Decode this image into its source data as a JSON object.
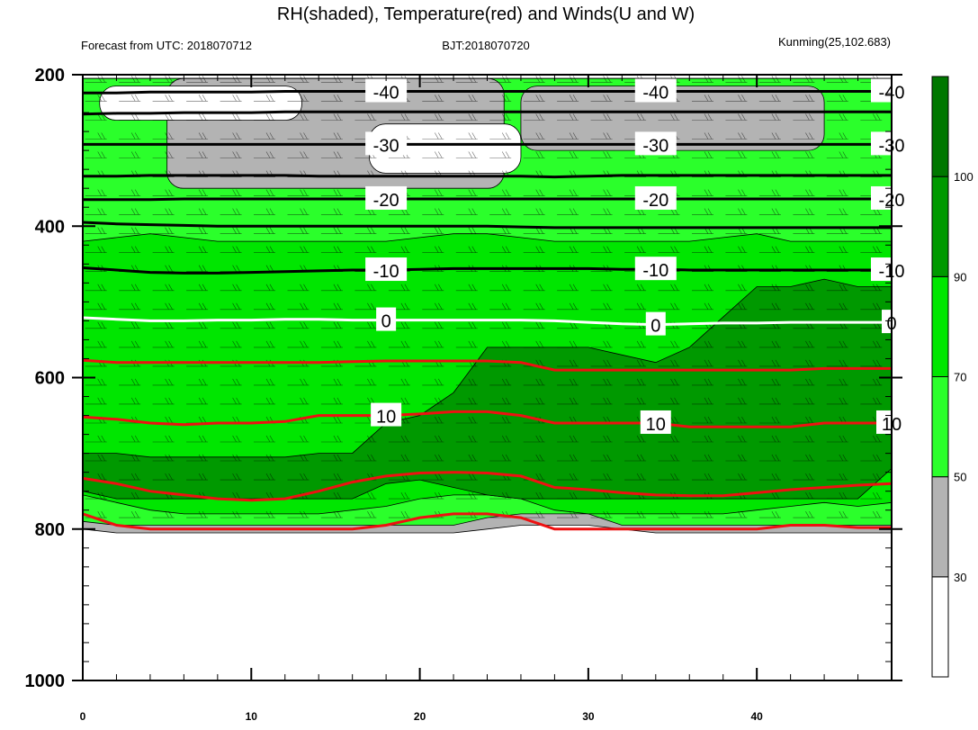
{
  "title": "RH(shaded), Temperature(red) and Winds(U and W)",
  "left_info": "Forecast from UTC: 2018070712",
  "center_info": "BJT:2018070720",
  "right_info": "Kunming(25,102.683)",
  "colors": {
    "rh_lt30": "#ffffff",
    "rh_30_50": "#b3b3b3",
    "rh_50_70": "#2bff2b",
    "rh_70_90": "#00e600",
    "rh_90_100": "#009900",
    "rh_gt100": "#007700",
    "temp_positive": "#ee1111",
    "temp_zero": "#ffffff",
    "temp_negative": "#000000"
  },
  "chart_data": {
    "type": "heatmap",
    "xlim": [
      0,
      48
    ],
    "ylim": [
      1000,
      200
    ],
    "x_ticks": [
      "0",
      "10",
      "20",
      "30",
      "40"
    ],
    "x_tick_values": [
      0,
      10,
      20,
      30,
      40
    ],
    "y_ticks": [
      "200",
      "400",
      "600",
      "800",
      "1000"
    ],
    "y_tick_values": [
      200,
      400,
      600,
      800,
      1000
    ],
    "colorbar": {
      "levels": [
        "30",
        "50",
        "70",
        "90",
        "100"
      ],
      "bounds": [
        0,
        30,
        50,
        70,
        90,
        100,
        110
      ]
    },
    "rh_bands": [
      {
        "lo": 30,
        "hi": 50,
        "top": [
          205,
          205,
          205,
          205,
          205,
          205,
          205,
          205,
          205,
          205,
          205,
          205,
          205,
          205,
          205,
          205,
          205,
          205,
          205,
          205,
          205,
          205,
          205,
          205,
          205
        ],
        "bottom": [
          800,
          805,
          805,
          805,
          805,
          805,
          805,
          805,
          805,
          805,
          805,
          805,
          800,
          795,
          795,
          795,
          800,
          805,
          805,
          805,
          805,
          805,
          805,
          805,
          805
        ]
      },
      {
        "lo": 50,
        "hi": 70,
        "top": [
          205,
          205,
          205,
          205,
          205,
          205,
          205,
          205,
          205,
          205,
          205,
          205,
          205,
          205,
          205,
          205,
          205,
          205,
          205,
          205,
          205,
          205,
          205,
          205,
          205
        ],
        "bottom": [
          790,
          795,
          795,
          795,
          795,
          795,
          795,
          795,
          795,
          795,
          795,
          795,
          785,
          780,
          780,
          780,
          795,
          795,
          795,
          795,
          795,
          795,
          795,
          795,
          795
        ]
      },
      {
        "lo": 70,
        "hi": 90,
        "top": [
          420,
          415,
          410,
          415,
          420,
          420,
          420,
          420,
          420,
          420,
          415,
          410,
          410,
          415,
          420,
          420,
          420,
          420,
          420,
          415,
          410,
          420,
          420,
          420,
          420
        ],
        "bottom": [
          755,
          765,
          775,
          780,
          780,
          780,
          780,
          780,
          775,
          770,
          760,
          755,
          755,
          760,
          775,
          780,
          780,
          780,
          780,
          780,
          775,
          770,
          765,
          770,
          765
        ]
      },
      {
        "lo": 90,
        "hi": 100,
        "top": [
          700,
          700,
          705,
          705,
          705,
          705,
          705,
          700,
          700,
          660,
          650,
          620,
          560,
          560,
          560,
          560,
          570,
          580,
          560,
          520,
          480,
          480,
          470,
          480,
          480
        ],
        "bottom": [
          750,
          760,
          760,
          760,
          760,
          760,
          760,
          760,
          760,
          740,
          735,
          745,
          755,
          760,
          760,
          760,
          760,
          760,
          760,
          760,
          760,
          760,
          760,
          760,
          720
        ]
      }
    ],
    "rh_dry_patches": [
      {
        "x": [
          5,
          25
        ],
        "top": 205,
        "bottom": 350
      },
      {
        "x": [
          26,
          44
        ],
        "top": 215,
        "bottom": 300
      },
      {
        "x": [
          1,
          13
        ],
        "top": 215,
        "bottom": 260
      },
      {
        "x": [
          17,
          26
        ],
        "top": 265,
        "bottom": 330
      }
    ],
    "temperature_contours": [
      {
        "level": -40,
        "label": "-40",
        "y": [
          224,
          224,
          223,
          223,
          223,
          223,
          222,
          222,
          222,
          222,
          222,
          222,
          222,
          222,
          222,
          222,
          222,
          222,
          222,
          222,
          222,
          222,
          222,
          222,
          222
        ]
      },
      {
        "level": -35,
        "label": "",
        "y": [
          252,
          251,
          251,
          250,
          250,
          250,
          249,
          249,
          249,
          249,
          249,
          249,
          249,
          249,
          249,
          249,
          249,
          249,
          249,
          249,
          249,
          249,
          249,
          249,
          249
        ]
      },
      {
        "level": -30,
        "label": "-30",
        "y": [
          292,
          292,
          292,
          292,
          292,
          292,
          292,
          292,
          292,
          292,
          292,
          292,
          292,
          292,
          292,
          292,
          292,
          292,
          292,
          292,
          292,
          292,
          292,
          292,
          292
        ]
      },
      {
        "level": -25,
        "label": "",
        "y": [
          334,
          334,
          333,
          333,
          333,
          333,
          333,
          334,
          334,
          334,
          334,
          334,
          334,
          334,
          335,
          334,
          333,
          333,
          333,
          333,
          333,
          333,
          333,
          333,
          333
        ]
      },
      {
        "level": -20,
        "label": "-20",
        "y": [
          365,
          365,
          365,
          364,
          364,
          364,
          364,
          364,
          364,
          364,
          364,
          364,
          364,
          364,
          364,
          364,
          364,
          364,
          364,
          364,
          364,
          364,
          364,
          364,
          364
        ]
      },
      {
        "level": -15,
        "label": "",
        "y": [
          395,
          397,
          398,
          399,
          400,
          400,
          400,
          400,
          400,
          400,
          400,
          400,
          400,
          401,
          402,
          402,
          402,
          402,
          402,
          402,
          402,
          402,
          402,
          402,
          402
        ]
      },
      {
        "level": -10,
        "label": "-10",
        "y": [
          455,
          458,
          461,
          462,
          462,
          461,
          460,
          459,
          458,
          458,
          457,
          456,
          456,
          456,
          456,
          456,
          457,
          457,
          458,
          458,
          458,
          458,
          458,
          458,
          458
        ]
      },
      {
        "level": 0,
        "label": "0",
        "y": [
          521,
          523,
          525,
          525,
          524,
          524,
          523,
          523,
          524,
          524,
          524,
          524,
          524,
          524,
          525,
          527,
          529,
          530,
          529,
          528,
          528,
          527,
          527,
          527,
          527
        ]
      },
      {
        "level": 5,
        "label": "",
        "y": [
          577,
          580,
          580,
          580,
          580,
          580,
          580,
          580,
          579,
          578,
          578,
          578,
          578,
          580,
          590,
          590,
          590,
          590,
          590,
          590,
          590,
          590,
          588,
          588,
          588
        ]
      },
      {
        "level": 10,
        "label": "10",
        "y": [
          652,
          655,
          660,
          662,
          660,
          660,
          658,
          650,
          650,
          650,
          648,
          645,
          645,
          650,
          660,
          660,
          660,
          660,
          665,
          665,
          665,
          665,
          660,
          660,
          660
        ]
      },
      {
        "level": 15,
        "label": "",
        "y": [
          733,
          740,
          750,
          755,
          760,
          762,
          760,
          750,
          738,
          730,
          726,
          725,
          726,
          730,
          745,
          748,
          752,
          755,
          756,
          756,
          752,
          748,
          745,
          742,
          740
        ]
      },
      {
        "level": 20,
        "label": "",
        "y": [
          780,
          795,
          800,
          800,
          800,
          800,
          800,
          800,
          800,
          795,
          785,
          780,
          780,
          785,
          800,
          800,
          800,
          800,
          800,
          800,
          800,
          795,
          795,
          798,
          798
        ]
      }
    ]
  }
}
